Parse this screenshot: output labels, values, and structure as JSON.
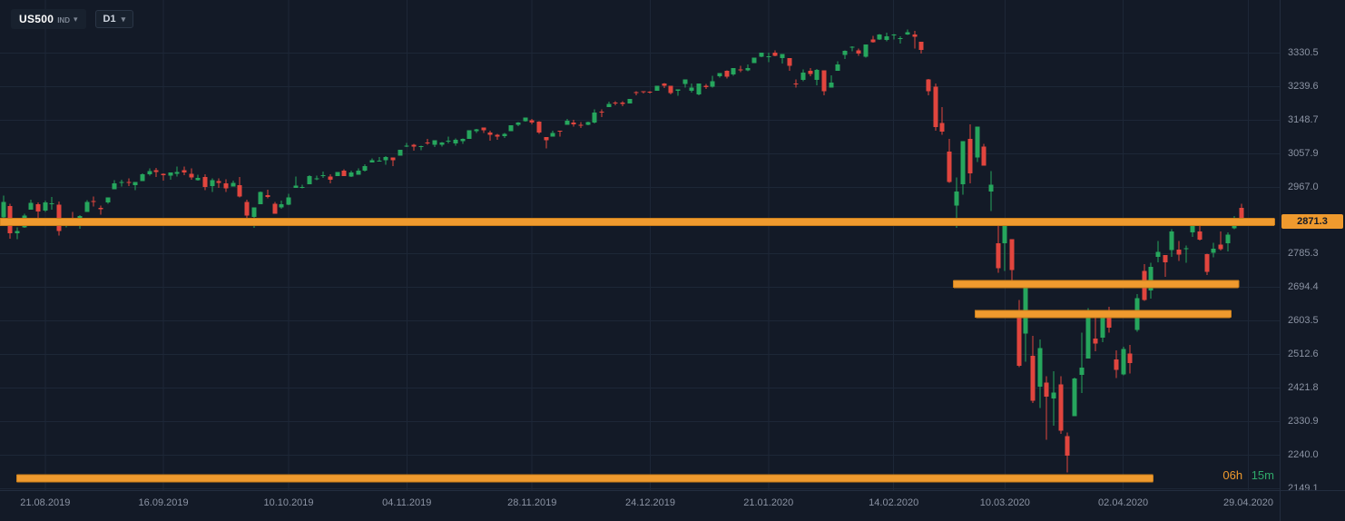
{
  "toolbar": {
    "symbol": "US500",
    "symbol_type": "IND",
    "timeframe": "D1",
    "caret": "▾"
  },
  "countdown": {
    "hours": "06h",
    "minutes": "15m"
  },
  "colors": {
    "background": "#131a27",
    "grid": "#1d2737",
    "up": "#26a65d",
    "down": "#e1453e",
    "level_fill": "#ef9a2e",
    "level_border": "#c97e1b",
    "axis_text": "#8b93a3",
    "price_tag_bg": "#ef9a2e",
    "price_tag_text": "#131a27",
    "countdown_hours": "#ef9a2e",
    "countdown_minutes": "#2fa96a"
  },
  "chart_data": {
    "type": "candlestick",
    "symbol": "US500",
    "timeframe": "D1",
    "price_axis": {
      "view_top": 3473.0,
      "view_bottom": 2144.0,
      "current_price": "2871.3",
      "labels": [
        "3330.5",
        "3239.6",
        "3148.7",
        "3057.9",
        "2967.0",
        "2785.3",
        "2694.4",
        "2603.5",
        "2512.6",
        "2421.8",
        "2330.9",
        "2240.0",
        "2149.1"
      ]
    },
    "time_axis": {
      "slots": 184,
      "ticks": [
        [
          "21.08.2019",
          6
        ],
        [
          "16.09.2019",
          23
        ],
        [
          "10.10.2019",
          41
        ],
        [
          "04.11.2019",
          58
        ],
        [
          "28.11.2019",
          76
        ],
        [
          "24.12.2019",
          93
        ],
        [
          "21.01.2020",
          110
        ],
        [
          "14.02.2020",
          128
        ],
        [
          "10.03.2020",
          144
        ],
        [
          "02.04.2020",
          161
        ],
        [
          "29.04.2020",
          179
        ]
      ]
    },
    "levels": [
      {
        "price": 2871.3,
        "from": 0.0,
        "to": 0.996
      },
      {
        "price": 2703.0,
        "from": 0.745,
        "to": 0.968
      },
      {
        "price": 2622.0,
        "from": 0.762,
        "to": 0.962
      },
      {
        "price": 2176.0,
        "from": 0.013,
        "to": 0.901
      }
    ],
    "candles": [
      [
        2883,
        2943,
        2876,
        2926
      ],
      [
        2914,
        2920,
        2826,
        2841
      ],
      [
        2841,
        2856,
        2825,
        2847
      ],
      [
        2857,
        2894,
        2855,
        2889
      ],
      [
        2905,
        2931,
        2905,
        2923
      ],
      [
        2919,
        2924,
        2880,
        2900
      ],
      [
        2902,
        2929,
        2898,
        2924
      ],
      [
        2922,
        2939,
        2904,
        2922
      ],
      [
        2918,
        2927,
        2834,
        2847
      ],
      [
        2866,
        2879,
        2856,
        2878
      ],
      [
        2879,
        2898,
        2860,
        2869
      ],
      [
        2869,
        2890,
        2853,
        2887
      ],
      [
        2898,
        2930,
        2898,
        2925
      ],
      [
        2928,
        2940,
        2913,
        2926
      ],
      [
        2909,
        2915,
        2891,
        2906
      ],
      [
        2924,
        2938,
        2921,
        2938
      ],
      [
        2960,
        2985,
        2960,
        2976
      ],
      [
        2978,
        2986,
        2967,
        2979
      ],
      [
        2980,
        2989,
        2969,
        2978
      ],
      [
        2971,
        2980,
        2957,
        2979
      ],
      [
        2982,
        3003,
        2982,
        3000
      ],
      [
        3001,
        3017,
        2997,
        3009
      ],
      [
        3012,
        3018,
        2993,
        3007
      ],
      [
        3002,
        3003,
        2983,
        2998
      ],
      [
        2997,
        3006,
        2986,
        3006
      ],
      [
        3002,
        3022,
        2994,
        3007
      ],
      [
        3011,
        3022,
        2998,
        3006
      ],
      [
        3002,
        3017,
        2986,
        2992
      ],
      [
        2984,
        2999,
        2983,
        2991
      ],
      [
        2993,
        3000,
        2958,
        2966
      ],
      [
        2968,
        2990,
        2953,
        2985
      ],
      [
        2982,
        2989,
        2963,
        2977
      ],
      [
        2976,
        2987,
        2952,
        2962
      ],
      [
        2967,
        2983,
        2967,
        2977
      ],
      [
        2971,
        2993,
        2938,
        2940
      ],
      [
        2925,
        2931,
        2875,
        2888
      ],
      [
        2885,
        2911,
        2855,
        2911
      ],
      [
        2919,
        2954,
        2919,
        2952
      ],
      [
        2944,
        2959,
        2935,
        2939
      ],
      [
        2921,
        2926,
        2893,
        2893
      ],
      [
        2911,
        2929,
        2907,
        2919
      ],
      [
        2918,
        2948,
        2917,
        2938
      ],
      [
        2963,
        2994,
        2963,
        2970
      ],
      [
        2965,
        2972,
        2962,
        2966
      ],
      [
        2973,
        2998,
        2973,
        2996
      ],
      [
        2989,
        2997,
        2985,
        2990
      ],
      [
        2995,
        3008,
        2991,
        2998
      ],
      [
        2994,
        3000,
        2976,
        2986
      ],
      [
        2996,
        3007,
        2995,
        3007
      ],
      [
        3010,
        3014,
        2996,
        2996
      ],
      [
        2994,
        3010,
        2993,
        3005
      ],
      [
        2999,
        3016,
        2999,
        3010
      ],
      [
        3010,
        3027,
        3008,
        3023
      ],
      [
        3032,
        3044,
        3032,
        3039
      ],
      [
        3035,
        3047,
        3035,
        3037
      ],
      [
        3039,
        3050,
        3026,
        3047
      ],
      [
        3046,
        3046,
        3023,
        3038
      ],
      [
        3051,
        3067,
        3051,
        3067
      ],
      [
        3078,
        3085,
        3074,
        3078
      ],
      [
        3080,
        3083,
        3065,
        3075
      ],
      [
        3075,
        3078,
        3066,
        3077
      ],
      [
        3087,
        3097,
        3081,
        3085
      ],
      [
        3081,
        3093,
        3074,
        3093
      ],
      [
        3080,
        3088,
        3075,
        3087
      ],
      [
        3090,
        3102,
        3084,
        3092
      ],
      [
        3084,
        3098,
        3078,
        3094
      ],
      [
        3090,
        3098,
        3083,
        3097
      ],
      [
        3096,
        3120,
        3096,
        3120
      ],
      [
        3117,
        3124,
        3112,
        3122
      ],
      [
        3127,
        3127,
        3113,
        3120
      ],
      [
        3114,
        3118,
        3091,
        3108
      ],
      [
        3108,
        3110,
        3094,
        3103
      ],
      [
        3104,
        3112,
        3099,
        3110
      ],
      [
        3117,
        3133,
        3117,
        3133
      ],
      [
        3134,
        3142,
        3131,
        3141
      ],
      [
        3145,
        3154,
        3143,
        3154
      ],
      [
        3147,
        3150,
        3136,
        3141
      ],
      [
        3143,
        3144,
        3110,
        3114
      ],
      [
        3101,
        3101,
        3070,
        3093
      ],
      [
        3103,
        3119,
        3102,
        3113
      ],
      [
        3119,
        3119,
        3103,
        3117
      ],
      [
        3134,
        3150,
        3134,
        3146
      ],
      [
        3141,
        3148,
        3130,
        3136
      ],
      [
        3135,
        3142,
        3126,
        3132
      ],
      [
        3135,
        3143,
        3133,
        3142
      ],
      [
        3141,
        3176,
        3138,
        3168
      ],
      [
        3170,
        3176,
        3156,
        3169
      ],
      [
        3183,
        3197,
        3183,
        3191
      ],
      [
        3195,
        3198,
        3187,
        3192
      ],
      [
        3195,
        3198,
        3185,
        3191
      ],
      [
        3192,
        3205,
        3192,
        3205
      ],
      [
        3223,
        3226,
        3214,
        3221
      ],
      [
        3226,
        3226,
        3220,
        3224
      ],
      [
        3225,
        3226,
        3220,
        3223
      ],
      [
        3227,
        3240,
        3227,
        3240
      ],
      [
        3247,
        3248,
        3234,
        3240
      ],
      [
        3240,
        3240,
        3217,
        3221
      ],
      [
        3227,
        3231,
        3213,
        3231
      ],
      [
        3245,
        3258,
        3235,
        3258
      ],
      [
        3227,
        3246,
        3222,
        3235
      ],
      [
        3217,
        3247,
        3214,
        3246
      ],
      [
        3241,
        3245,
        3232,
        3237
      ],
      [
        3238,
        3267,
        3236,
        3253
      ],
      [
        3266,
        3275,
        3263,
        3275
      ],
      [
        3281,
        3282,
        3260,
        3265
      ],
      [
        3271,
        3288,
        3268,
        3288
      ],
      [
        3285,
        3294,
        3277,
        3283
      ],
      [
        3282,
        3298,
        3280,
        3289
      ],
      [
        3302,
        3317,
        3302,
        3317
      ],
      [
        3319,
        3330,
        3318,
        3330
      ],
      [
        3321,
        3330,
        3304,
        3321
      ],
      [
        3330,
        3337,
        3320,
        3322
      ],
      [
        3316,
        3326,
        3301,
        3326
      ],
      [
        3315,
        3315,
        3281,
        3295
      ],
      [
        3247,
        3258,
        3235,
        3244
      ],
      [
        3256,
        3285,
        3253,
        3276
      ],
      [
        3281,
        3289,
        3266,
        3273
      ],
      [
        3256,
        3286,
        3242,
        3284
      ],
      [
        3282,
        3282,
        3214,
        3226
      ],
      [
        3236,
        3269,
        3235,
        3249
      ],
      [
        3281,
        3307,
        3281,
        3298
      ],
      [
        3324,
        3337,
        3313,
        3335
      ],
      [
        3344,
        3348,
        3334,
        3346
      ],
      [
        3336,
        3341,
        3322,
        3328
      ],
      [
        3319,
        3352,
        3317,
        3352
      ],
      [
        3366,
        3376,
        3357,
        3358
      ],
      [
        3366,
        3381,
        3365,
        3379
      ],
      [
        3365,
        3385,
        3361,
        3374
      ],
      [
        3379,
        3381,
        3366,
        3380
      ],
      [
        3369,
        3375,
        3355,
        3370
      ],
      [
        3380,
        3393,
        3378,
        3386
      ],
      [
        3380,
        3389,
        3341,
        3373
      ],
      [
        3360,
        3360,
        3328,
        3338
      ],
      [
        3258,
        3259,
        3214,
        3226
      ],
      [
        3238,
        3246,
        3118,
        3128
      ],
      [
        3139,
        3182,
        3108,
        3116
      ],
      [
        3062,
        3097,
        2977,
        2979
      ],
      [
        2916,
        2992,
        2855,
        2954
      ],
      [
        2974,
        3090,
        2945,
        3090
      ],
      [
        3096,
        3136,
        2976,
        3003
      ],
      [
        3046,
        3130,
        3034,
        3130
      ],
      [
        3075,
        3083,
        3024,
        3024
      ],
      [
        2954,
        3009,
        2901,
        2972
      ],
      [
        2813,
        2863,
        2734,
        2746
      ],
      [
        2813,
        2882,
        2738,
        2882
      ],
      [
        2825,
        2825,
        2707,
        2741
      ],
      [
        2630,
        2660,
        2478,
        2481
      ],
      [
        2569,
        2711,
        2492,
        2711
      ],
      [
        2508,
        2562,
        2380,
        2386
      ],
      [
        2425,
        2553,
        2367,
        2529
      ],
      [
        2436,
        2453,
        2280,
        2398
      ],
      [
        2393,
        2466,
        2319,
        2409
      ],
      [
        2431,
        2453,
        2296,
        2305
      ],
      [
        2290,
        2300,
        2192,
        2237
      ],
      [
        2344,
        2449,
        2344,
        2447
      ],
      [
        2457,
        2571,
        2407,
        2476
      ],
      [
        2501,
        2637,
        2501,
        2630
      ],
      [
        2555,
        2615,
        2520,
        2541
      ],
      [
        2558,
        2631,
        2545,
        2627
      ],
      [
        2614,
        2641,
        2571,
        2585
      ],
      [
        2498,
        2523,
        2448,
        2470
      ],
      [
        2458,
        2533,
        2455,
        2527
      ],
      [
        2514,
        2538,
        2460,
        2489
      ],
      [
        2578,
        2676,
        2574,
        2664
      ],
      [
        2738,
        2757,
        2657,
        2659
      ],
      [
        2685,
        2761,
        2663,
        2750
      ],
      [
        2776,
        2819,
        2762,
        2790
      ],
      [
        2782,
        2782,
        2722,
        2762
      ],
      [
        2795,
        2851,
        2776,
        2846
      ],
      [
        2796,
        2819,
        2766,
        2783
      ],
      [
        2799,
        2807,
        2761,
        2800
      ],
      [
        2843,
        2879,
        2831,
        2875
      ],
      [
        2845,
        2869,
        2821,
        2823
      ],
      [
        2784,
        2785,
        2727,
        2736
      ],
      [
        2787,
        2815,
        2775,
        2799
      ],
      [
        2810,
        2845,
        2794,
        2798
      ],
      [
        2813,
        2843,
        2791,
        2837
      ],
      [
        2854,
        2887,
        2852,
        2878
      ],
      [
        2909,
        2921,
        2860,
        2863
      ],
      [
        2866,
        2880,
        2860,
        2871
      ]
    ]
  }
}
